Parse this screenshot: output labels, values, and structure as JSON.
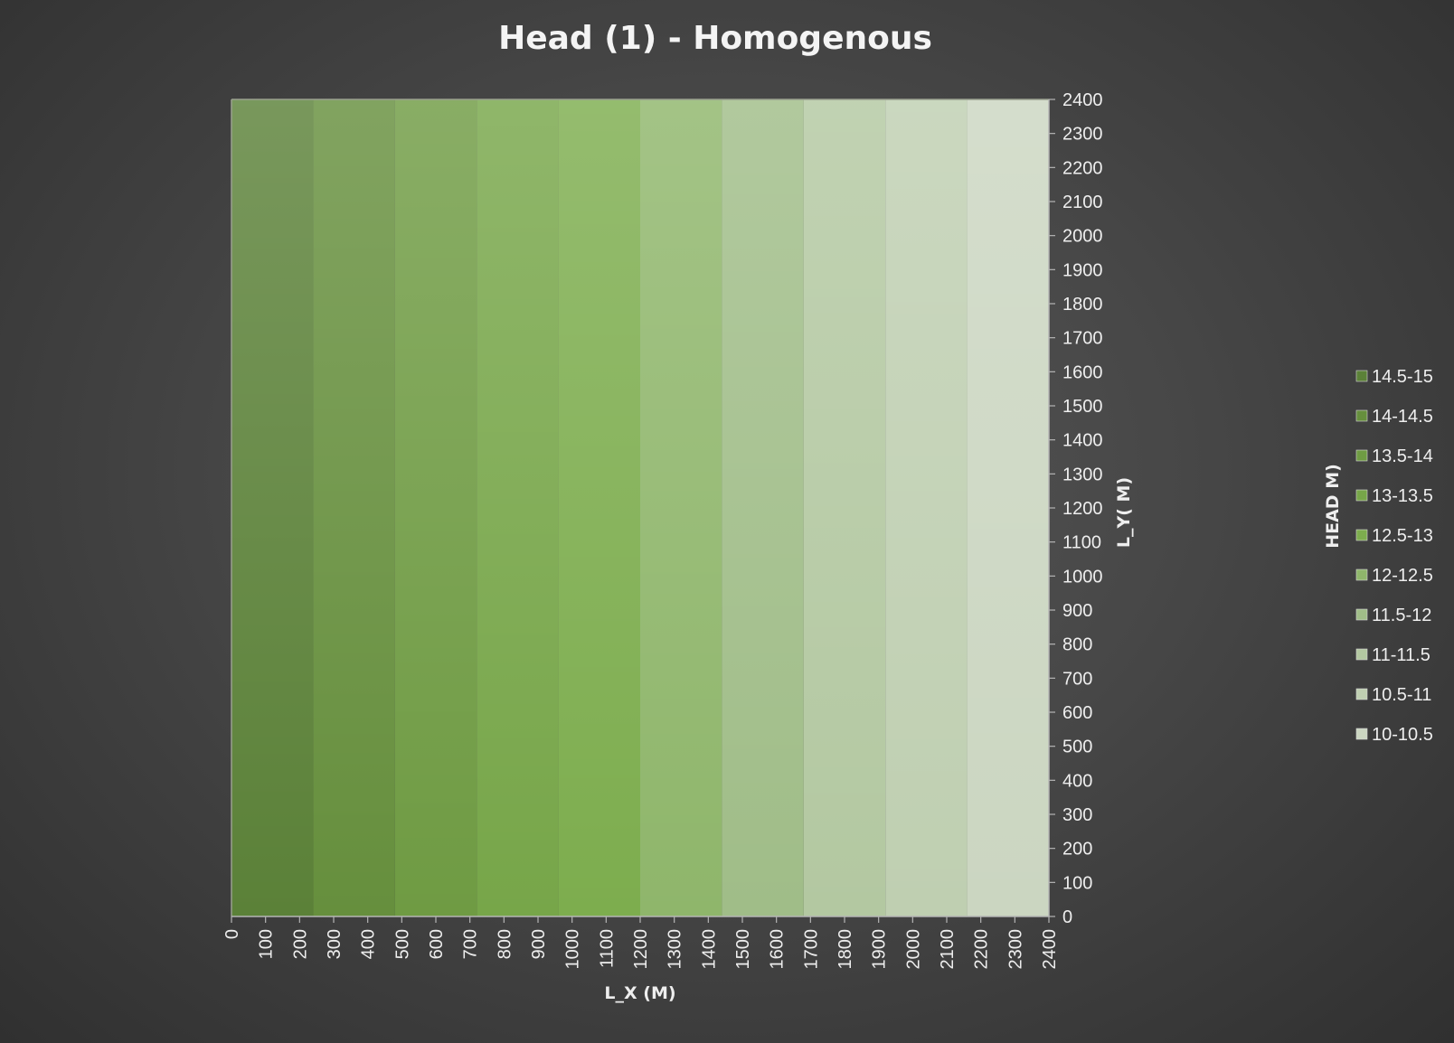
{
  "chart_data": {
    "type": "heatmap",
    "title": "Head (1) - Homogenous",
    "xlabel": "L_X (M)",
    "ylabel": "L_Y( M)",
    "legend_title": "HEAD M)",
    "legend_position": "right",
    "xlim": [
      0,
      2400
    ],
    "ylim": [
      0,
      2400
    ],
    "x_ticks": [
      0,
      100,
      200,
      300,
      400,
      500,
      600,
      700,
      800,
      900,
      1000,
      1100,
      1200,
      1300,
      1400,
      1500,
      1600,
      1700,
      1800,
      1900,
      2000,
      2100,
      2200,
      2300,
      2400
    ],
    "y_ticks": [
      0,
      100,
      200,
      300,
      400,
      500,
      600,
      700,
      800,
      900,
      1000,
      1100,
      1200,
      1300,
      1400,
      1500,
      1600,
      1700,
      1800,
      1900,
      2000,
      2100,
      2200,
      2300,
      2400
    ],
    "bands": [
      {
        "range": "14.5-15",
        "x_start": 0,
        "x_end": 240,
        "color": "#5b8138"
      },
      {
        "range": "14-14.5",
        "x_start": 240,
        "x_end": 480,
        "color": "#668f3d"
      },
      {
        "range": "13.5-14",
        "x_start": 480,
        "x_end": 720,
        "color": "#6f9b43"
      },
      {
        "range": "13-13.5",
        "x_start": 720,
        "x_end": 960,
        "color": "#77a649"
      },
      {
        "range": "12.5-13",
        "x_start": 960,
        "x_end": 1200,
        "color": "#7dad4e"
      },
      {
        "range": "12-12.5",
        "x_start": 1200,
        "x_end": 1440,
        "color": "#8fb66b"
      },
      {
        "range": "11.5-12",
        "x_start": 1440,
        "x_end": 1680,
        "color": "#a0bd88"
      },
      {
        "range": "11-11.5",
        "x_start": 1680,
        "x_end": 1920,
        "color": "#b3c8a1"
      },
      {
        "range": "10.5-11",
        "x_start": 1920,
        "x_end": 2160,
        "color": "#bfcfb1"
      },
      {
        "range": "10-10.5",
        "x_start": 2160,
        "x_end": 2400,
        "color": "#cbd6c1"
      }
    ],
    "legend_order": [
      "14.5-15",
      "14-14.5",
      "13.5-14",
      "13-13.5",
      "12.5-13",
      "12-12.5",
      "11.5-12",
      "11-11.5",
      "10.5-11",
      "10-10.5"
    ]
  }
}
